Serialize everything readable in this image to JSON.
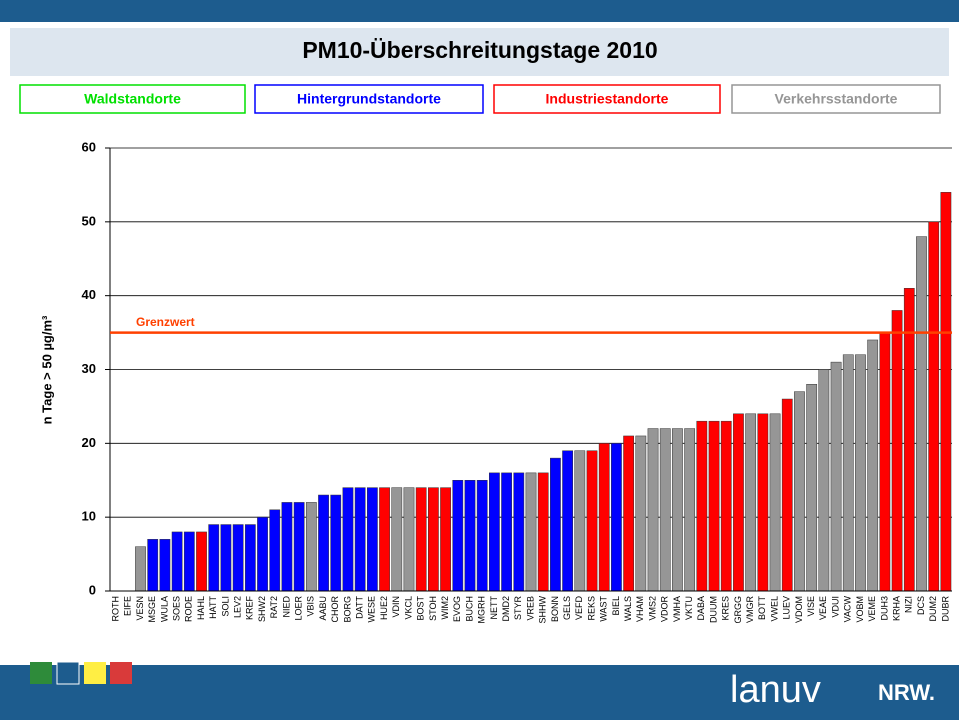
{
  "chart_data": {
    "type": "bar",
    "title": "PM10-Überschreitungstage 2010",
    "ylabel": "n Tage > 50 µg/m³",
    "legend": [
      {
        "name": "Waldstandorte",
        "color": "#00e000"
      },
      {
        "name": "Hintergrundstandorte",
        "color": "#0000ff"
      },
      {
        "name": "Industriestandorte",
        "color": "#ff0000"
      },
      {
        "name": "Verkehrsstandorte",
        "color": "#969696"
      }
    ],
    "categories": [
      "ROTH",
      "EIFE",
      "VESN",
      "MSGE",
      "WULA",
      "SOES",
      "RODE",
      "HAHL",
      "HATT",
      "SOLI",
      "LEV2",
      "KREF",
      "SHW2",
      "RAT2",
      "NIED",
      "LOER",
      "VBIS",
      "AABU",
      "CHOR",
      "BORG",
      "DATT",
      "WESE",
      "HUE2",
      "VDIN",
      "VKCL",
      "BOST",
      "STOH",
      "WIM2",
      "EVOG",
      "BUCH",
      "MGRH",
      "NETT",
      "DMD2",
      "STYR",
      "VREB",
      "SHHW",
      "BONN",
      "GELS",
      "VEFD",
      "REKS",
      "WAST",
      "BIEL",
      "WALS",
      "VHAM",
      "VMS2",
      "VDOR",
      "VMHA",
      "VKTU",
      "DABA",
      "DUUM",
      "KRES",
      "GRGG",
      "VMGR",
      "BOTT",
      "VWEL",
      "LUEV",
      "VDOM",
      "VISE",
      "VEAE",
      "VDUI",
      "VACW",
      "VOBM",
      "VEME",
      "DUH3",
      "KRHA",
      "NIZI",
      "DCS",
      "DUM2",
      "DUBR"
    ],
    "values": [
      0,
      0,
      6,
      7,
      7,
      8,
      8,
      8,
      9,
      9,
      9,
      9,
      10,
      11,
      12,
      12,
      12,
      13,
      13,
      14,
      14,
      14,
      14,
      14,
      14,
      14,
      14,
      14,
      15,
      15,
      15,
      16,
      16,
      16,
      16,
      16,
      18,
      19,
      19,
      19,
      20,
      20,
      21,
      21,
      22,
      22,
      22,
      22,
      23,
      23,
      23,
      24,
      24,
      24,
      24,
      26,
      27,
      28,
      30,
      31,
      32,
      32,
      34,
      35,
      38,
      41,
      48,
      50,
      54
    ],
    "colors": [
      "#00e000",
      "#00e000",
      "#969696",
      "#0000ff",
      "#0000ff",
      "#0000ff",
      "#0000ff",
      "#ff0000",
      "#0000ff",
      "#0000ff",
      "#0000ff",
      "#0000ff",
      "#0000ff",
      "#0000ff",
      "#0000ff",
      "#0000ff",
      "#969696",
      "#0000ff",
      "#0000ff",
      "#0000ff",
      "#0000ff",
      "#0000ff",
      "#ff0000",
      "#969696",
      "#969696",
      "#ff0000",
      "#ff0000",
      "#ff0000",
      "#0000ff",
      "#0000ff",
      "#0000ff",
      "#0000ff",
      "#0000ff",
      "#0000ff",
      "#969696",
      "#ff0000",
      "#0000ff",
      "#0000ff",
      "#969696",
      "#ff0000",
      "#ff0000",
      "#0000ff",
      "#ff0000",
      "#969696",
      "#969696",
      "#969696",
      "#969696",
      "#969696",
      "#ff0000",
      "#ff0000",
      "#ff0000",
      "#ff0000",
      "#969696",
      "#ff0000",
      "#969696",
      "#ff0000",
      "#969696",
      "#969696",
      "#969696",
      "#969696",
      "#969696",
      "#969696",
      "#969696",
      "#ff0000",
      "#ff0000",
      "#ff0000",
      "#969696",
      "#ff0000",
      "#ff0000"
    ],
    "ylim": [
      0,
      60
    ],
    "yticks": [
      0,
      10,
      20,
      30,
      40,
      50,
      60
    ],
    "grid": true,
    "threshold": {
      "label": "Grenzwert",
      "value": 35,
      "color": "#ff4000"
    }
  },
  "footer": {
    "logo": "lanuv",
    "logo_suffix": "NRW."
  }
}
